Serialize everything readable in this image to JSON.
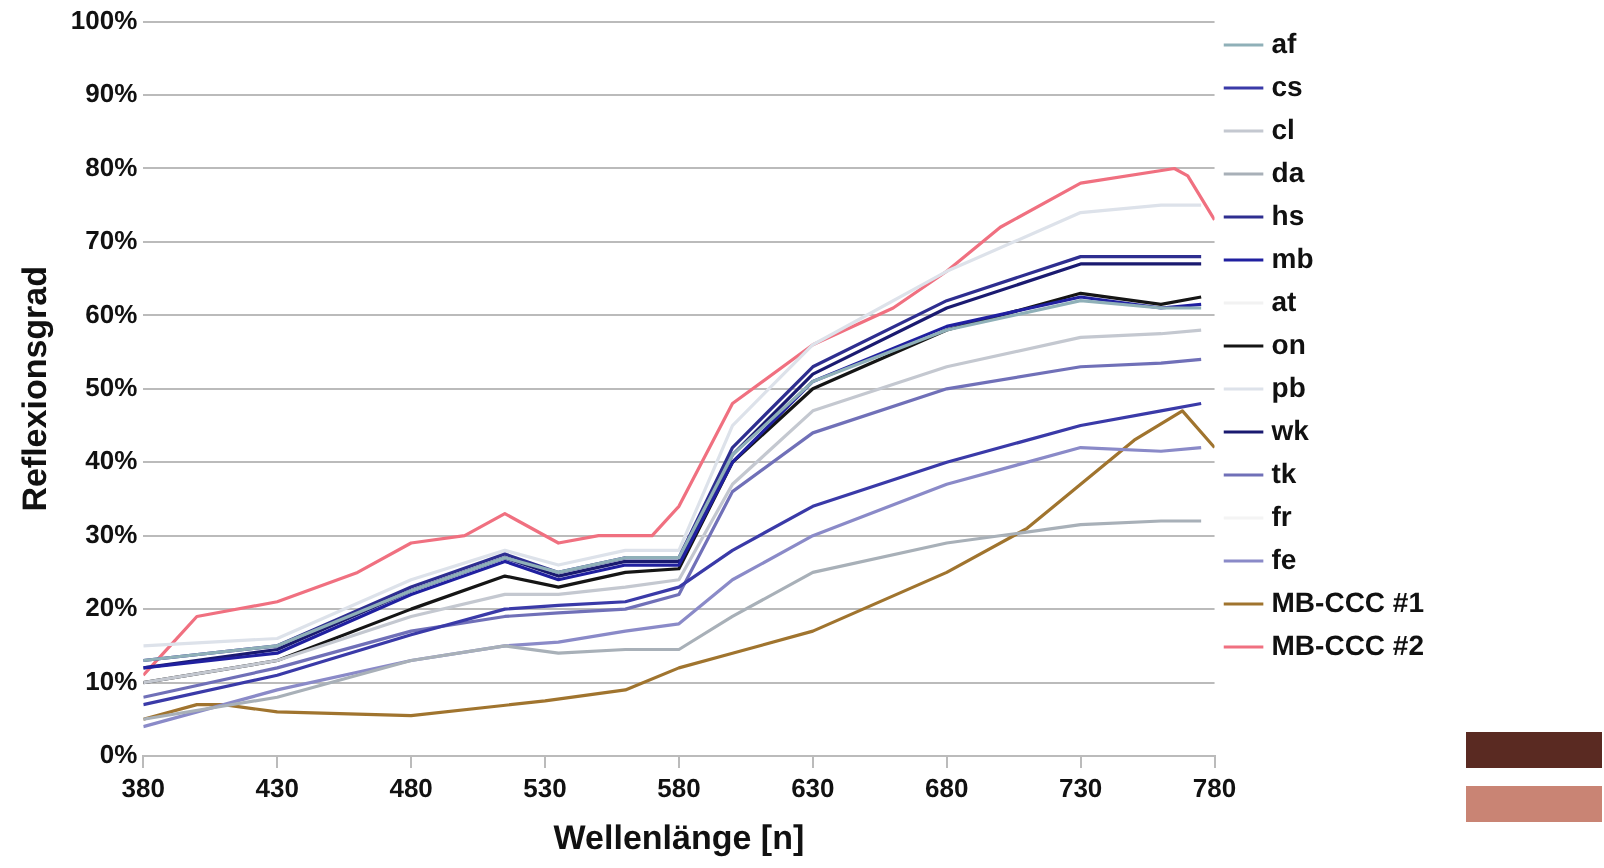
{
  "chart_data": {
    "type": "line",
    "xlabel": "Wellenlänge [n]",
    "ylabel": "Reflexionsgrad",
    "x": [
      380,
      430,
      480,
      515,
      535,
      560,
      580,
      600,
      630,
      680,
      730,
      760,
      775
    ],
    "xlim": [
      380,
      780
    ],
    "xticks": [
      380,
      430,
      480,
      530,
      580,
      630,
      680,
      730,
      780
    ],
    "ylim": [
      0,
      100
    ],
    "yticks": [
      {
        "value": 0,
        "label": "0%"
      },
      {
        "value": 10,
        "label": "10%"
      },
      {
        "value": 20,
        "label": "20%"
      },
      {
        "value": 30,
        "label": "30%"
      },
      {
        "value": 40,
        "label": "40%"
      },
      {
        "value": 50,
        "label": "50%"
      },
      {
        "value": 60,
        "label": "60%"
      },
      {
        "value": 70,
        "label": "70%"
      },
      {
        "value": 80,
        "label": "80%"
      },
      {
        "value": 90,
        "label": "90%"
      },
      {
        "value": 100,
        "label": "100%"
      }
    ],
    "grid": "y",
    "legend": "right",
    "marker": "none",
    "line_style": "solid",
    "series": [
      {
        "name": "af",
        "color": "#8fb0b8",
        "values": [
          13,
          15,
          22.5,
          27,
          25,
          27,
          27,
          41,
          51,
          58,
          62,
          61,
          61
        ]
      },
      {
        "name": "cs",
        "color": "#3a3aa8",
        "values": [
          7,
          11,
          16.5,
          20,
          20.5,
          21,
          23,
          28,
          34,
          40,
          45,
          47,
          48
        ]
      },
      {
        "name": "cl",
        "color": "#c4c8d0",
        "values": [
          10,
          13,
          19,
          22,
          22,
          23,
          24,
          37,
          47,
          53,
          57,
          57.5,
          58
        ]
      },
      {
        "name": "da",
        "color": "#a8b0b8",
        "values": [
          5,
          8,
          13,
          15,
          14,
          14.5,
          14.5,
          19,
          25,
          29,
          31.5,
          32,
          32
        ]
      },
      {
        "name": "hs",
        "color": "#2e2e90",
        "values": [
          13,
          15,
          23,
          27.5,
          25,
          27,
          27,
          42,
          53,
          62,
          68,
          68,
          68
        ]
      },
      {
        "name": "mb",
        "color": "#2020a0",
        "values": [
          12,
          14,
          22,
          26.5,
          24,
          26,
          26,
          40,
          51,
          58.5,
          62.5,
          61,
          61.5
        ]
      },
      {
        "name": "at",
        "color": "#f2f2f2",
        "values": [
          null,
          null,
          null,
          null,
          null,
          null,
          null,
          null,
          null,
          null,
          null,
          null,
          null
        ]
      },
      {
        "name": "on",
        "color": "#151515",
        "values": [
          10,
          13,
          20,
          24.5,
          23,
          25,
          25.5,
          40,
          50,
          58,
          63,
          61.5,
          62.5
        ]
      },
      {
        "name": "pb",
        "color": "#dde2ea",
        "values": [
          15,
          16,
          24,
          28,
          26,
          28,
          28,
          45,
          56,
          66,
          74,
          75,
          75
        ]
      },
      {
        "name": "wk",
        "color": "#1a1a70",
        "values": [
          12,
          14.5,
          22.5,
          27,
          24.5,
          26.5,
          26.5,
          41,
          52,
          61,
          67,
          67,
          67
        ]
      },
      {
        "name": "tk",
        "color": "#7070b8",
        "values": [
          8,
          12,
          17,
          19,
          19.5,
          20,
          22,
          36,
          44,
          50,
          53,
          53.5,
          54
        ]
      },
      {
        "name": "fr",
        "color": "#f4f4f4",
        "values": [
          null,
          null,
          null,
          null,
          null,
          null,
          null,
          null,
          null,
          null,
          null,
          null,
          null
        ]
      },
      {
        "name": "fe",
        "color": "#8a8ac8",
        "values": [
          4,
          9,
          13,
          15,
          15.5,
          17,
          18,
          24,
          30,
          37,
          42,
          41.5,
          42
        ]
      },
      {
        "name": "MB-CCC #1",
        "color": "#a0742e",
        "x": [
          380,
          400,
          410,
          430,
          480,
          530,
          560,
          580,
          600,
          630,
          680,
          710,
          730,
          750,
          768,
          780
        ],
        "values": [
          5,
          7,
          7,
          6,
          5.5,
          7.5,
          9,
          12,
          14,
          17,
          25,
          31,
          37,
          43,
          47,
          42
        ]
      },
      {
        "name": "MB-CCC #2",
        "color": "#f07080",
        "x": [
          380,
          390,
          400,
          430,
          460,
          480,
          500,
          515,
          520,
          535,
          550,
          570,
          580,
          600,
          630,
          660,
          680,
          700,
          730,
          765,
          770,
          780
        ],
        "values": [
          11,
          15,
          19,
          21,
          25,
          29,
          30,
          33,
          32,
          29,
          30,
          30,
          34,
          48,
          56,
          61,
          66,
          72,
          78,
          80,
          79,
          73
        ]
      }
    ]
  }
}
